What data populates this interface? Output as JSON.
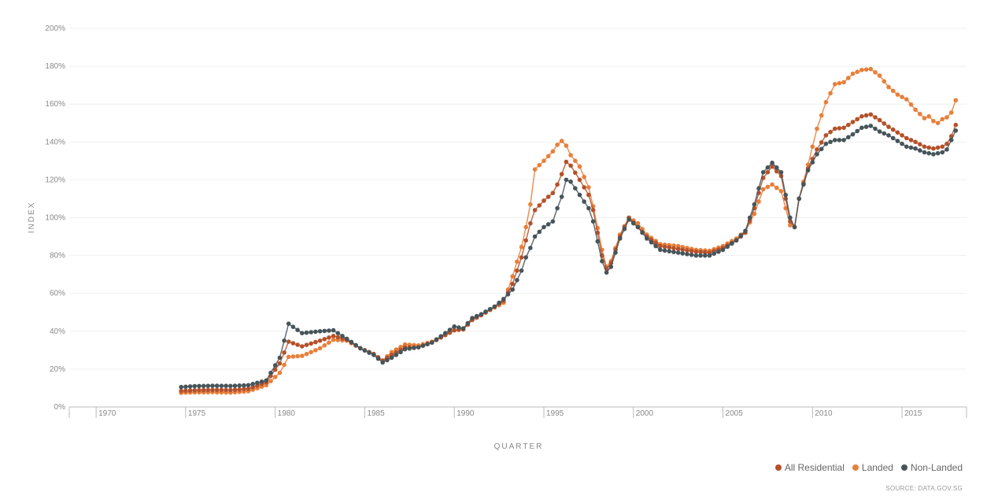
{
  "chart_data": {
    "type": "line",
    "xlabel": "QUARTER",
    "ylabel": "INDEX",
    "xlim": [
      1968.5,
      2018.6
    ],
    "ylim": [
      0,
      200
    ],
    "x_ticks": [
      "1970",
      "1975",
      "1980",
      "1985",
      "1990",
      "1995",
      "2000",
      "2005",
      "2010",
      "2015"
    ],
    "y_ticks": [
      "0%",
      "20%",
      "40%",
      "60%",
      "80%",
      "100%",
      "120%",
      "140%",
      "160%",
      "180%",
      "200%"
    ],
    "grid": true,
    "legend_position": "bottom-right",
    "source": "SOURCE: DATA.GOV.SG",
    "series": [
      {
        "name": "Landed",
        "color": "#e87f3a",
        "points": [
          [
            1974.75,
            7.5
          ],
          [
            1975.5,
            7.7
          ],
          [
            1976.5,
            7.8
          ],
          [
            1977.5,
            7.6
          ],
          [
            1978.5,
            8.3
          ],
          [
            1979.5,
            11.5
          ],
          [
            1980.25,
            18
          ],
          [
            1980.75,
            26.5
          ],
          [
            1981.5,
            27
          ],
          [
            1982.5,
            31
          ],
          [
            1983.25,
            35.5
          ],
          [
            1984,
            35
          ],
          [
            1984.75,
            31
          ],
          [
            1985.5,
            28
          ],
          [
            1986,
            24.5
          ],
          [
            1986.5,
            29
          ],
          [
            1987.25,
            33
          ],
          [
            1988,
            32.5
          ],
          [
            1988.75,
            34.5
          ],
          [
            1989.5,
            38
          ],
          [
            1990,
            40.5
          ],
          [
            1990.5,
            41
          ],
          [
            1991,
            46
          ],
          [
            1991.5,
            48.5
          ],
          [
            1992.25,
            52.5
          ],
          [
            1992.75,
            55
          ],
          [
            1993.25,
            69
          ],
          [
            1993.75,
            84.5
          ],
          [
            1994,
            95
          ],
          [
            1994.25,
            107
          ],
          [
            1994.5,
            125.5
          ],
          [
            1995,
            130
          ],
          [
            1995.5,
            135
          ],
          [
            1995.75,
            138.5
          ],
          [
            1996,
            140.5
          ],
          [
            1996.25,
            138
          ],
          [
            1996.5,
            133
          ],
          [
            1997,
            127
          ],
          [
            1997.5,
            116
          ],
          [
            1997.75,
            106
          ],
          [
            1998.25,
            83
          ],
          [
            1998.5,
            74
          ],
          [
            1998.75,
            77
          ],
          [
            1999.25,
            91
          ],
          [
            1999.75,
            100
          ],
          [
            2000.25,
            97
          ],
          [
            2000.75,
            91
          ],
          [
            2001.5,
            86
          ],
          [
            2002.5,
            85
          ],
          [
            2003.5,
            83
          ],
          [
            2004.25,
            82.5
          ],
          [
            2005,
            85
          ],
          [
            2005.75,
            89
          ],
          [
            2006.25,
            93
          ],
          [
            2006.75,
            102
          ],
          [
            2007.25,
            115
          ],
          [
            2007.75,
            117.5
          ],
          [
            2008.25,
            114
          ],
          [
            2008.75,
            96
          ],
          [
            2009,
            95
          ],
          [
            2009.25,
            110
          ],
          [
            2009.75,
            128
          ],
          [
            2010.25,
            147
          ],
          [
            2010.75,
            161
          ],
          [
            2011.25,
            170.5
          ],
          [
            2011.75,
            171.5
          ],
          [
            2012.25,
            176
          ],
          [
            2012.75,
            178
          ],
          [
            2013.25,
            178.5
          ],
          [
            2013.75,
            175
          ],
          [
            2014.25,
            169
          ],
          [
            2014.75,
            165
          ],
          [
            2015.25,
            162.5
          ],
          [
            2015.75,
            157
          ],
          [
            2016.25,
            152.5
          ],
          [
            2016.5,
            153.5
          ],
          [
            2016.75,
            151
          ],
          [
            2017,
            150
          ],
          [
            2017.25,
            152
          ],
          [
            2017.5,
            153
          ],
          [
            2017.75,
            155.5
          ],
          [
            2018,
            162
          ]
        ]
      },
      {
        "name": "All Residential",
        "color": "#b5512a",
        "points": [
          [
            1974.75,
            8.5
          ],
          [
            1975.5,
            8.8
          ],
          [
            1976.5,
            9
          ],
          [
            1977.5,
            8.9
          ],
          [
            1978.5,
            9.6
          ],
          [
            1979.5,
            13
          ],
          [
            1980.25,
            23
          ],
          [
            1980.75,
            34.5
          ],
          [
            1981.5,
            32
          ],
          [
            1982.5,
            35
          ],
          [
            1983.25,
            37.5
          ],
          [
            1984,
            35.5
          ],
          [
            1984.75,
            31
          ],
          [
            1985.5,
            28
          ],
          [
            1986,
            24.5
          ],
          [
            1986.5,
            27.5
          ],
          [
            1987.25,
            31.5
          ],
          [
            1988,
            31.5
          ],
          [
            1988.75,
            34
          ],
          [
            1989.5,
            38
          ],
          [
            1990,
            40.5
          ],
          [
            1990.5,
            41
          ],
          [
            1991,
            46
          ],
          [
            1991.5,
            48.5
          ],
          [
            1992.25,
            53
          ],
          [
            1992.75,
            56
          ],
          [
            1993.25,
            65
          ],
          [
            1993.75,
            79
          ],
          [
            1994,
            88
          ],
          [
            1994.25,
            97
          ],
          [
            1994.5,
            104
          ],
          [
            1995,
            109
          ],
          [
            1995.5,
            113
          ],
          [
            1995.75,
            117.5
          ],
          [
            1996,
            123
          ],
          [
            1996.25,
            129.5
          ],
          [
            1996.5,
            127.5
          ],
          [
            1997,
            120
          ],
          [
            1997.5,
            112
          ],
          [
            1997.75,
            104
          ],
          [
            1998.25,
            80
          ],
          [
            1998.5,
            73
          ],
          [
            1998.75,
            76
          ],
          [
            1999.25,
            90
          ],
          [
            1999.75,
            100
          ],
          [
            2000.25,
            95
          ],
          [
            2000.75,
            90
          ],
          [
            2001.5,
            85
          ],
          [
            2002.5,
            83.5
          ],
          [
            2003.5,
            82
          ],
          [
            2004.25,
            81.5
          ],
          [
            2005,
            84
          ],
          [
            2005.75,
            88
          ],
          [
            2006.25,
            92
          ],
          [
            2006.75,
            105
          ],
          [
            2007.25,
            121
          ],
          [
            2007.75,
            127
          ],
          [
            2008.25,
            122
          ],
          [
            2008.75,
            98
          ],
          [
            2009,
            95
          ],
          [
            2009.25,
            110
          ],
          [
            2009.75,
            126
          ],
          [
            2010.25,
            136
          ],
          [
            2010.75,
            143.5
          ],
          [
            2011.25,
            147
          ],
          [
            2011.75,
            147.5
          ],
          [
            2012.25,
            150.5
          ],
          [
            2012.75,
            153.5
          ],
          [
            2013.25,
            154.5
          ],
          [
            2013.75,
            151.5
          ],
          [
            2014.25,
            148
          ],
          [
            2014.75,
            145
          ],
          [
            2015.25,
            142
          ],
          [
            2015.75,
            140
          ],
          [
            2016.25,
            137.5
          ],
          [
            2016.75,
            136.5
          ],
          [
            2017.25,
            137.5
          ],
          [
            2017.5,
            139
          ],
          [
            2017.75,
            143
          ],
          [
            2018,
            149
          ]
        ]
      },
      {
        "name": "Non-Landed",
        "color": "#46555a",
        "points": [
          [
            1974.75,
            10.5
          ],
          [
            1975.5,
            11
          ],
          [
            1976.5,
            11.2
          ],
          [
            1977.5,
            11.1
          ],
          [
            1978.5,
            11.5
          ],
          [
            1979.5,
            14
          ],
          [
            1980.25,
            26
          ],
          [
            1980.75,
            44
          ],
          [
            1981.5,
            39
          ],
          [
            1982.5,
            40
          ],
          [
            1983.25,
            40.5
          ],
          [
            1984,
            36
          ],
          [
            1984.75,
            31
          ],
          [
            1985.5,
            27.5
          ],
          [
            1986,
            23.5
          ],
          [
            1986.5,
            26
          ],
          [
            1987.25,
            30.5
          ],
          [
            1988,
            31.5
          ],
          [
            1988.75,
            34
          ],
          [
            1989.5,
            39
          ],
          [
            1990,
            42.5
          ],
          [
            1990.5,
            41.5
          ],
          [
            1991,
            47
          ],
          [
            1991.5,
            49
          ],
          [
            1992.25,
            53
          ],
          [
            1992.75,
            57
          ],
          [
            1993.25,
            62
          ],
          [
            1993.75,
            72
          ],
          [
            1994,
            79
          ],
          [
            1994.25,
            84
          ],
          [
            1994.5,
            90
          ],
          [
            1995,
            95
          ],
          [
            1995.5,
            98
          ],
          [
            1995.75,
            105
          ],
          [
            1996,
            111
          ],
          [
            1996.25,
            120
          ],
          [
            1996.5,
            119
          ],
          [
            1997,
            112
          ],
          [
            1997.5,
            105
          ],
          [
            1997.75,
            98
          ],
          [
            1998.25,
            77
          ],
          [
            1998.5,
            71
          ],
          [
            1998.75,
            74
          ],
          [
            1999.25,
            89
          ],
          [
            1999.75,
            99
          ],
          [
            2000.25,
            95
          ],
          [
            2000.75,
            89
          ],
          [
            2001.5,
            83
          ],
          [
            2002.5,
            81.5
          ],
          [
            2003.5,
            80
          ],
          [
            2004.25,
            80
          ],
          [
            2005,
            83
          ],
          [
            2005.75,
            88
          ],
          [
            2006.25,
            93
          ],
          [
            2006.75,
            107
          ],
          [
            2007.25,
            124
          ],
          [
            2007.75,
            129
          ],
          [
            2008.25,
            124
          ],
          [
            2008.75,
            100
          ],
          [
            2009,
            95
          ],
          [
            2009.25,
            110
          ],
          [
            2009.75,
            125
          ],
          [
            2010.25,
            133.5
          ],
          [
            2010.75,
            139
          ],
          [
            2011.25,
            141
          ],
          [
            2011.75,
            141
          ],
          [
            2012.25,
            144
          ],
          [
            2012.75,
            147.5
          ],
          [
            2013.25,
            148.5
          ],
          [
            2013.75,
            145.5
          ],
          [
            2014.25,
            143.5
          ],
          [
            2014.75,
            140.5
          ],
          [
            2015.25,
            137.5
          ],
          [
            2015.75,
            136.5
          ],
          [
            2016.25,
            134.5
          ],
          [
            2016.75,
            133.5
          ],
          [
            2017.25,
            134.5
          ],
          [
            2017.5,
            136
          ],
          [
            2017.75,
            141
          ],
          [
            2018,
            146
          ]
        ]
      }
    ]
  },
  "legend": {
    "items": [
      {
        "label": "All Residential",
        "color": "#b5512a"
      },
      {
        "label": "Landed",
        "color": "#e87f3a"
      },
      {
        "label": "Non-Landed",
        "color": "#46555a"
      }
    ]
  }
}
